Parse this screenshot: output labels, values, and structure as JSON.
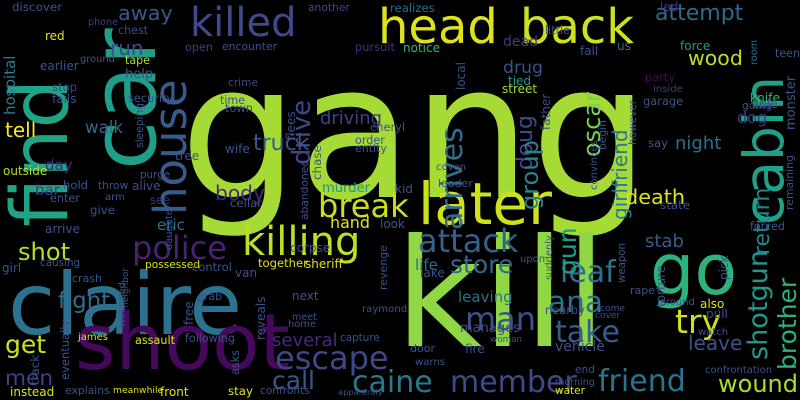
{
  "background_color": "#000000",
  "words": [
    {
      "text": "gang",
      "color": "#a6db36"
    },
    {
      "text": "kill",
      "color": "#8fd744"
    },
    {
      "text": "claire",
      "color": "#2c728e"
    },
    {
      "text": "shoot",
      "color": "#46085c"
    },
    {
      "text": "find",
      "color": "#20a486"
    },
    {
      "text": "car",
      "color": "#1f9e89"
    },
    {
      "text": "later",
      "color": "#cde11d"
    },
    {
      "text": "head",
      "color": "#dde318"
    },
    {
      "text": "back",
      "color": "#cde11d"
    },
    {
      "text": "killed",
      "color": "#3e4a89"
    },
    {
      "text": "house",
      "color": "#375b8d"
    },
    {
      "text": "cabin",
      "color": "#1fa187"
    },
    {
      "text": "go",
      "color": "#2db27d"
    },
    {
      "text": "killing",
      "color": "#bddf26"
    },
    {
      "text": "police",
      "color": "#482173"
    },
    {
      "text": "break",
      "color": "#c8e020"
    },
    {
      "text": "attack",
      "color": "#34608d"
    },
    {
      "text": "man",
      "color": "#3b528b"
    },
    {
      "text": "escape",
      "color": "#3f4788"
    },
    {
      "text": "caine",
      "color": "#2a788e"
    },
    {
      "text": "member",
      "color": "#3e4a89"
    },
    {
      "text": "friend",
      "color": "#2c728e"
    },
    {
      "text": "wound",
      "color": "#a8db34"
    },
    {
      "text": "shotgun",
      "color": "#1f9a8a"
    },
    {
      "text": "brother",
      "color": "#2db27d"
    },
    {
      "text": "take",
      "color": "#365c8d"
    },
    {
      "text": "try",
      "color": "#d0e11c"
    },
    {
      "text": "leave",
      "color": "#3b528b"
    },
    {
      "text": "ana",
      "color": "#2c728e"
    },
    {
      "text": "leaf",
      "color": "#2d708e"
    },
    {
      "text": "store",
      "color": "#31688e"
    },
    {
      "text": "gun",
      "color": "#1e9b8a"
    },
    {
      "text": "return",
      "color": "#25848e"
    },
    {
      "text": "stab",
      "color": "#365c8d"
    },
    {
      "text": "death",
      "color": "#dde318"
    },
    {
      "text": "body",
      "color": "#482878"
    },
    {
      "text": "hand",
      "color": "#e7e419"
    },
    {
      "text": "call",
      "color": "#38588c"
    },
    {
      "text": "several",
      "color": "#482878"
    },
    {
      "text": "shot",
      "color": "#b5de2b"
    },
    {
      "text": "fight",
      "color": "#2f6c8e"
    },
    {
      "text": "get",
      "color": "#cde11d"
    },
    {
      "text": "men",
      "color": "#424086"
    },
    {
      "text": "tell",
      "color": "#fde725"
    },
    {
      "text": "walk",
      "color": "#31688e"
    },
    {
      "text": "help",
      "color": "#3b528b"
    },
    {
      "text": "run",
      "color": "#3f4788"
    },
    {
      "text": "away",
      "color": "#38588c"
    },
    {
      "text": "drive",
      "color": "#3f4788"
    },
    {
      "text": "driving",
      "color": "#424086"
    },
    {
      "text": "truck",
      "color": "#38588c"
    },
    {
      "text": "arrives",
      "color": "#2e6f8e"
    },
    {
      "text": "doug",
      "color": "#3e4a89"
    },
    {
      "text": "oscar",
      "color": "#7ad151"
    },
    {
      "text": "girlfriend",
      "color": "#2a788e"
    },
    {
      "text": "group",
      "color": "#26828e"
    },
    {
      "text": "attempt",
      "color": "#31688e"
    },
    {
      "text": "wood",
      "color": "#bddf26"
    },
    {
      "text": "knife",
      "color": "#35b779"
    },
    {
      "text": "dog",
      "color": "#453882"
    },
    {
      "text": "night",
      "color": "#2d708e"
    },
    {
      "text": "drug",
      "color": "#3b528b"
    },
    {
      "text": "dead",
      "color": "#443a83"
    },
    {
      "text": "eric",
      "color": "#2d708e"
    },
    {
      "text": "see",
      "color": "#46327e"
    },
    {
      "text": "bar",
      "color": "#443983"
    },
    {
      "text": "day",
      "color": "#482878"
    },
    {
      "text": "murder",
      "color": "#21918c"
    },
    {
      "text": "leaving",
      "color": "#2d708e"
    },
    {
      "text": "manages",
      "color": "#3e4989"
    },
    {
      "text": "vehicle",
      "color": "#3b528b"
    },
    {
      "text": "life",
      "color": "#2e6e8e"
    },
    {
      "text": "tied",
      "color": "#1f9e89"
    },
    {
      "text": "street",
      "color": "#a5db36"
    },
    {
      "text": "discover",
      "color": "#3b528b"
    },
    {
      "text": "red",
      "color": "#dde318"
    },
    {
      "text": "earlier",
      "color": "#39558c"
    },
    {
      "text": "hospital",
      "color": "#287d8e"
    },
    {
      "text": "stop",
      "color": "#3e4989"
    },
    {
      "text": "fails",
      "color": "#3b528b"
    },
    {
      "text": "ground",
      "color": "#3b528b"
    },
    {
      "text": "tape",
      "color": "#b2dd2d"
    },
    {
      "text": "phone",
      "color": "#433e85"
    },
    {
      "text": "chest",
      "color": "#3e4a89"
    },
    {
      "text": "another",
      "color": "#3e4a89"
    },
    {
      "text": "realizes",
      "color": "#31688e"
    },
    {
      "text": "little",
      "color": "#3b528b"
    },
    {
      "text": "led",
      "color": "#46327e"
    },
    {
      "text": "teen",
      "color": "#3b528b"
    },
    {
      "text": "room",
      "color": "#2e6e8e"
    },
    {
      "text": "force",
      "color": "#1f9e89"
    },
    {
      "text": "fall",
      "color": "#3b528b"
    },
    {
      "text": "us",
      "color": "#2d708e"
    },
    {
      "text": "notice",
      "color": "#37b878"
    },
    {
      "text": "open",
      "color": "#443a83"
    },
    {
      "text": "encounter",
      "color": "#3b528b"
    },
    {
      "text": "pursuit",
      "color": "#472f7d"
    },
    {
      "text": "local",
      "color": "#3b528b"
    },
    {
      "text": "father",
      "color": "#3e4a89"
    },
    {
      "text": "party",
      "color": "#46085c"
    },
    {
      "text": "inside",
      "color": "#453882"
    },
    {
      "text": "garage",
      "color": "#3b528b"
    },
    {
      "text": "monster",
      "color": "#3b528b"
    },
    {
      "text": "able",
      "color": "#3b528b"
    },
    {
      "text": "going",
      "color": "#3b528b"
    },
    {
      "text": "crime",
      "color": "#3f4788"
    },
    {
      "text": "time",
      "color": "#3b528b"
    },
    {
      "text": "town",
      "color": "#3b528b"
    },
    {
      "text": "security",
      "color": "#3b528b"
    },
    {
      "text": "sleeping",
      "color": "#3b528b"
    },
    {
      "text": "flees",
      "color": "#3b528b"
    },
    {
      "text": "cheryl",
      "color": "#3b528b"
    },
    {
      "text": "order",
      "color": "#3b528b"
    },
    {
      "text": "entity",
      "color": "#3b528b"
    },
    {
      "text": "tree",
      "color": "#3b528b"
    },
    {
      "text": "wife",
      "color": "#3b528b"
    },
    {
      "text": "chase",
      "color": "#3b528b"
    },
    {
      "text": "begin",
      "color": "#3b528b"
    },
    {
      "text": "however",
      "color": "#3b528b"
    },
    {
      "text": "say",
      "color": "#3b528b"
    },
    {
      "text": "convinces",
      "color": "#3b528b"
    },
    {
      "text": "coven",
      "color": "#3b528b"
    },
    {
      "text": "leader",
      "color": "#3b528b"
    },
    {
      "text": "kid",
      "color": "#3b528b"
    },
    {
      "text": "outside",
      "color": "#b5de2b"
    },
    {
      "text": "hold",
      "color": "#3b528b"
    },
    {
      "text": "throw",
      "color": "#3b528b"
    },
    {
      "text": "alive",
      "color": "#3b528b"
    },
    {
      "text": "purge",
      "color": "#3b528b"
    },
    {
      "text": "enter",
      "color": "#3b528b"
    },
    {
      "text": "arm",
      "color": "#3b528b"
    },
    {
      "text": "give",
      "color": "#3b528b"
    },
    {
      "text": "daughter",
      "color": "#3b528b"
    },
    {
      "text": "cellar",
      "color": "#3b528b"
    },
    {
      "text": "abandoned",
      "color": "#3b528b"
    },
    {
      "text": "state",
      "color": "#3b528b"
    },
    {
      "text": "remaining",
      "color": "#3b528b"
    },
    {
      "text": "forced",
      "color": "#3b528b"
    },
    {
      "text": "weapon",
      "color": "#3b528b"
    },
    {
      "text": "pick",
      "color": "#3b528b"
    },
    {
      "text": "torture",
      "color": "#3b528b"
    },
    {
      "text": "rape",
      "color": "#3b528b"
    },
    {
      "text": "around",
      "color": "#3b528b"
    },
    {
      "text": "also",
      "color": "#dde318"
    },
    {
      "text": "pull",
      "color": "#3b528b"
    },
    {
      "text": "watch",
      "color": "#3b528b"
    },
    {
      "text": "come",
      "color": "#3b528b"
    },
    {
      "text": "arrive",
      "color": "#3b528b"
    },
    {
      "text": "girl",
      "color": "#3b528b"
    },
    {
      "text": "causing",
      "color": "#3b528b"
    },
    {
      "text": "crash",
      "color": "#3b528b"
    },
    {
      "text": "wounded",
      "color": "#3b528b"
    },
    {
      "text": "neighbor",
      "color": "#3b528b"
    },
    {
      "text": "possessed",
      "color": "#dde318"
    },
    {
      "text": "control",
      "color": "#3b528b"
    },
    {
      "text": "van",
      "color": "#3b528b"
    },
    {
      "text": "together",
      "color": "#dde318"
    },
    {
      "text": "sheriff",
      "color": "#dde318"
    },
    {
      "text": "revenge",
      "color": "#3b528b"
    },
    {
      "text": "suddenly",
      "color": "#3b528b"
    },
    {
      "text": "upon",
      "color": "#3b528b"
    },
    {
      "text": "lake",
      "color": "#3b528b"
    },
    {
      "text": "look",
      "color": "#3b528b"
    },
    {
      "text": "corpse",
      "color": "#3b528b"
    },
    {
      "text": "next",
      "color": "#3b528b"
    },
    {
      "text": "meet",
      "color": "#3b528b"
    },
    {
      "text": "home",
      "color": "#3b528b"
    },
    {
      "text": "raymond",
      "color": "#3b528b"
    },
    {
      "text": "grab",
      "color": "#3b528b"
    },
    {
      "text": "free",
      "color": "#3b528b"
    },
    {
      "text": "reveals",
      "color": "#3b528b"
    },
    {
      "text": "capture",
      "color": "#3b528b"
    },
    {
      "text": "nearby",
      "color": "#3b528b"
    },
    {
      "text": "cover",
      "color": "#3b528b"
    },
    {
      "text": "fire",
      "color": "#3b528b"
    },
    {
      "text": "woman",
      "color": "#3b528b"
    },
    {
      "text": "door",
      "color": "#3b528b"
    },
    {
      "text": "warns",
      "color": "#3b528b"
    },
    {
      "text": "end",
      "color": "#3b528b"
    },
    {
      "text": "morning",
      "color": "#3b528b"
    },
    {
      "text": "water",
      "color": "#dde318"
    },
    {
      "text": "james",
      "color": "#dde318"
    },
    {
      "text": "assault",
      "color": "#dde318"
    },
    {
      "text": "following",
      "color": "#3b528b"
    },
    {
      "text": "asks",
      "color": "#3b528b"
    },
    {
      "text": "track",
      "color": "#3b528b"
    },
    {
      "text": "eventually",
      "color": "#3b528b"
    },
    {
      "text": "explains",
      "color": "#3b528b"
    },
    {
      "text": "meanwhile",
      "color": "#dde318"
    },
    {
      "text": "front",
      "color": "#dde318"
    },
    {
      "text": "stay",
      "color": "#dde318"
    },
    {
      "text": "confronts",
      "color": "#3b528b"
    },
    {
      "text": "apparently",
      "color": "#3b528b"
    },
    {
      "text": "instead",
      "color": "#dde318"
    },
    {
      "text": "confrontation",
      "color": "#3b528b"
    }
  ]
}
